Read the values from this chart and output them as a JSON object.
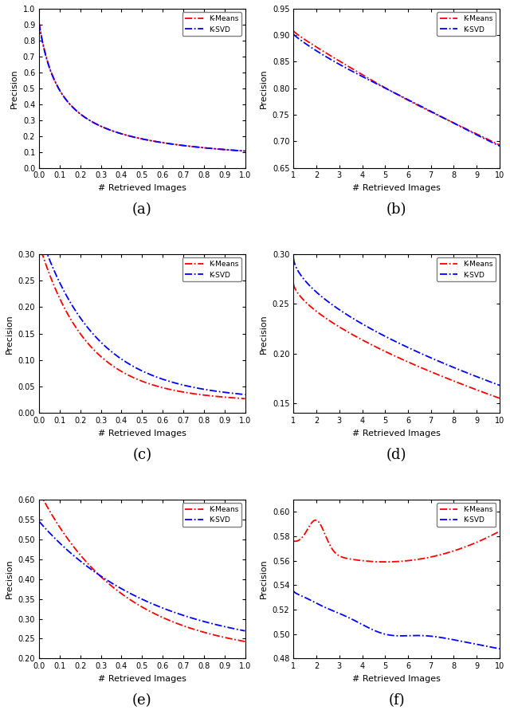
{
  "line_color_kmeans": "#FF0000",
  "line_color_ksvd": "#0000FF",
  "xlabel": "# Retrieved Images",
  "ylabel": "Precision",
  "legend_kmeans": "K-Means",
  "legend_ksvd": "K-SVD"
}
